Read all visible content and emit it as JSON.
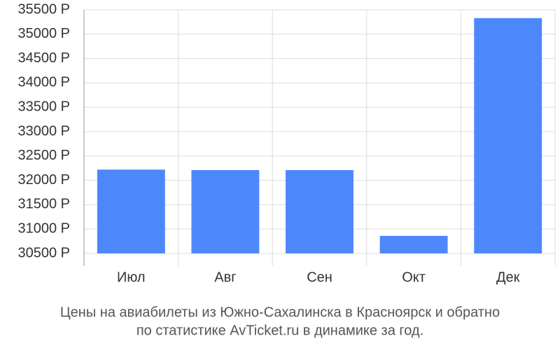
{
  "chart_data": {
    "type": "bar",
    "title": "Цены на авиабилеты из Южно-Сахалинска в Красноярск и обратно",
    "subtitle": "по статистике AvTicket.ru в динамике за год.",
    "categories": [
      "Июл",
      "Авг",
      "Сен",
      "Окт",
      "Дек"
    ],
    "values": [
      32220,
      32210,
      32210,
      30860,
      35330
    ],
    "color": "#4d88fb",
    "ylim": [
      30500,
      35500
    ],
    "yticks": [
      {
        "value": 30500,
        "label": "30500 Р"
      },
      {
        "value": 31000,
        "label": "31000 Р"
      },
      {
        "value": 31500,
        "label": "31500 Р"
      },
      {
        "value": 32000,
        "label": "32000 Р"
      },
      {
        "value": 32500,
        "label": "32500 Р"
      },
      {
        "value": 33000,
        "label": "33000 Р"
      },
      {
        "value": 33500,
        "label": "33500 Р"
      },
      {
        "value": 34000,
        "label": "34000 Р"
      },
      {
        "value": 34500,
        "label": "34500 Р"
      },
      {
        "value": 35000,
        "label": "35000 Р"
      },
      {
        "value": 35500,
        "label": "35500 Р"
      }
    ],
    "grid": true
  }
}
